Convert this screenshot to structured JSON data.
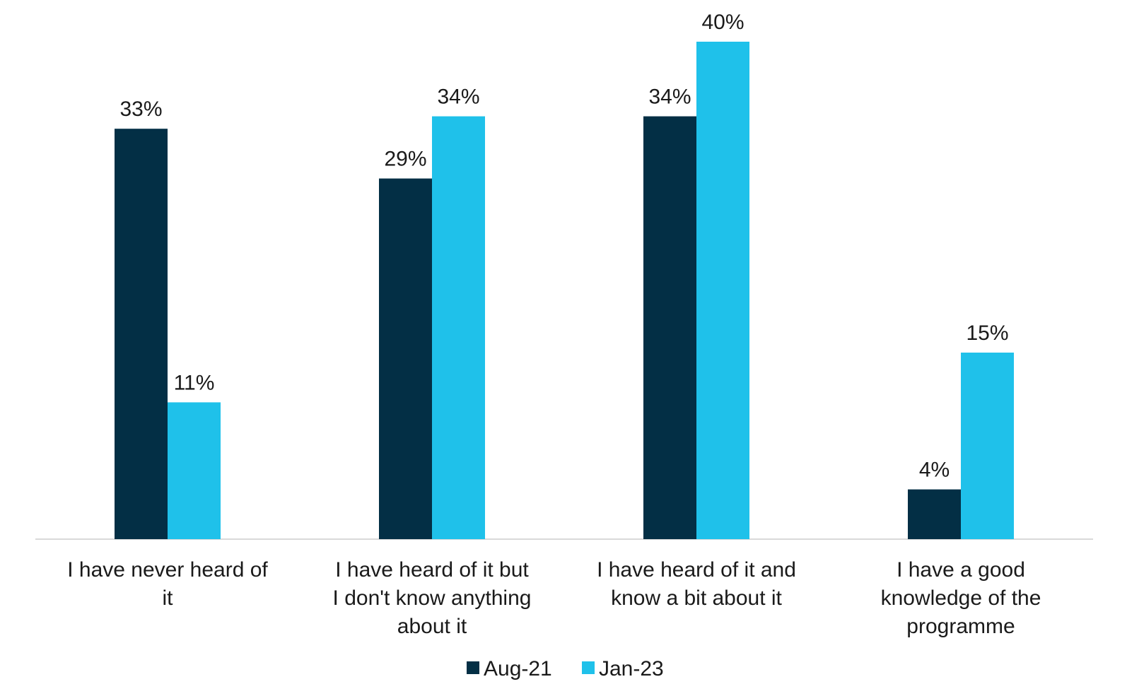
{
  "chart_data": {
    "type": "bar",
    "categories": [
      "I have never heard of it",
      "I have heard of it but I don't know anything about it",
      "I have heard of it and know a bit about it",
      "I have a good knowledge of the programme"
    ],
    "series": [
      {
        "name": "Aug-21",
        "color": "#032f45",
        "values": [
          33,
          29,
          34,
          4
        ],
        "labels": [
          "33%",
          "29%",
          "34%",
          "4%"
        ]
      },
      {
        "name": "Jan-23",
        "color": "#1fc1ea",
        "values": [
          11,
          34,
          40,
          15
        ],
        "labels": [
          "11%",
          "34%",
          "40%",
          "15%"
        ]
      }
    ],
    "ylim": [
      0,
      40
    ],
    "grid": false,
    "legend_position": "bottom-center",
    "value_unit": "%"
  }
}
